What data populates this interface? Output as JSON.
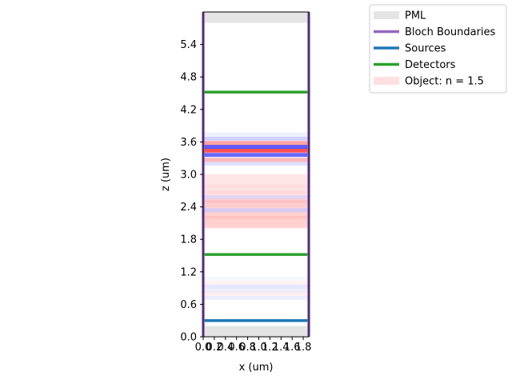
{
  "chart_data": {
    "type": "simulation-layout",
    "xlabel": "x (um)",
    "ylabel": "z (um)",
    "xlim": [
      0.0,
      1.9
    ],
    "ylim": [
      0.0,
      6.0
    ],
    "xticks": [
      "0.0",
      "0.2",
      "0.4",
      "0.6",
      "0.8",
      "1.0",
      "1.2",
      "1.4",
      "1.6",
      "1.8"
    ],
    "xtick_values": [
      0.0,
      0.2,
      0.4,
      0.6,
      0.8,
      1.0,
      1.2,
      1.4,
      1.6,
      1.8
    ],
    "yticks": [
      "0.0",
      "0.6",
      "1.2",
      "1.8",
      "2.4",
      "3.0",
      "3.6",
      "4.2",
      "4.8",
      "5.4"
    ],
    "ytick_values": [
      0.0,
      0.6,
      1.2,
      1.8,
      2.4,
      3.0,
      3.6,
      4.2,
      4.8,
      5.4
    ],
    "pml_regions": [
      {
        "z0": 0.0,
        "z1": 0.2
      },
      {
        "z0": 5.8,
        "z1": 6.0
      }
    ],
    "bloch_boundaries_x": [
      0.0,
      1.9
    ],
    "sources_z": [
      0.3
    ],
    "detectors_z": [
      1.52,
      4.52
    ],
    "object": {
      "label": "Object: n = 1.5",
      "z0": 2.0,
      "z1": 3.0
    },
    "field_bands": [
      {
        "z": 0.72,
        "color": "#c8c8ff",
        "opacity": 0.35
      },
      {
        "z": 0.8,
        "color": "#ffc8c8",
        "opacity": 0.3
      },
      {
        "z": 0.86,
        "color": "#c8c8ff",
        "opacity": 0.3
      },
      {
        "z": 0.93,
        "color": "#c8c8ff",
        "opacity": 0.45
      },
      {
        "z": 1.0,
        "color": "#ffd0d0",
        "opacity": 0.25
      },
      {
        "z": 1.08,
        "color": "#d8d8ff",
        "opacity": 0.2
      },
      {
        "z": 2.05,
        "color": "#ffb0b0",
        "opacity": 0.35
      },
      {
        "z": 2.12,
        "color": "#ffb0b0",
        "opacity": 0.4
      },
      {
        "z": 2.2,
        "color": "#ff9a9a",
        "opacity": 0.45
      },
      {
        "z": 2.27,
        "color": "#ffb0b0",
        "opacity": 0.35
      },
      {
        "z": 2.34,
        "color": "#a8a8ff",
        "opacity": 0.45
      },
      {
        "z": 2.42,
        "color": "#ffa8a8",
        "opacity": 0.4
      },
      {
        "z": 2.5,
        "color": "#ff9a9a",
        "opacity": 0.45
      },
      {
        "z": 2.58,
        "color": "#b8b8ff",
        "opacity": 0.4
      },
      {
        "z": 2.67,
        "color": "#ffc0c0",
        "opacity": 0.3
      },
      {
        "z": 2.78,
        "color": "#ffc8c8",
        "opacity": 0.25
      },
      {
        "z": 3.2,
        "color": "#b8b8ff",
        "opacity": 0.45
      },
      {
        "z": 3.27,
        "color": "#ff8080",
        "opacity": 0.55
      },
      {
        "z": 3.36,
        "color": "#5050ff",
        "opacity": 0.85
      },
      {
        "z": 3.44,
        "color": "#ff3030",
        "opacity": 0.85
      },
      {
        "z": 3.51,
        "color": "#4040ff",
        "opacity": 0.85
      },
      {
        "z": 3.58,
        "color": "#ff7070",
        "opacity": 0.65
      },
      {
        "z": 3.66,
        "color": "#a0a0ff",
        "opacity": 0.5
      },
      {
        "z": 3.74,
        "color": "#d0d0ff",
        "opacity": 0.35
      }
    ],
    "legend": {
      "placement": "top-right",
      "items": [
        {
          "label": "PML",
          "color": "#e4e4e4",
          "kind": "patch"
        },
        {
          "label": "Bloch Boundaries",
          "color": "#9467bd",
          "kind": "line"
        },
        {
          "label": "Sources",
          "color": "#1f77b4",
          "kind": "line"
        },
        {
          "label": "Detectors",
          "color": "#2ca02c",
          "kind": "line"
        },
        {
          "label": "Object: n = 1.5",
          "color": "#ffe0e0",
          "kind": "patch"
        }
      ]
    }
  }
}
